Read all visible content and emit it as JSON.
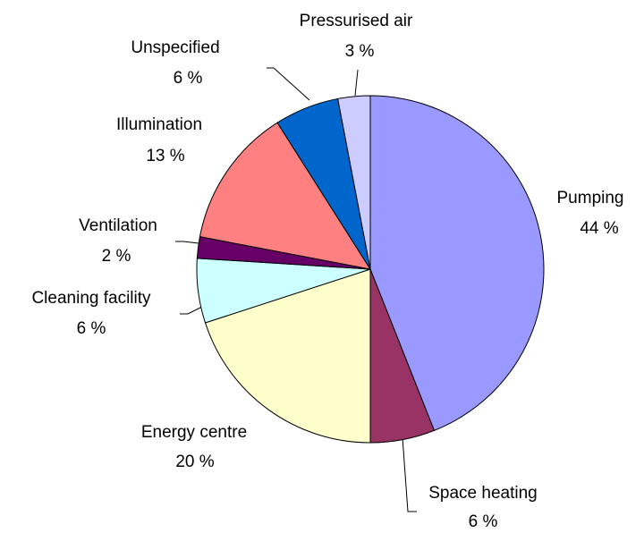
{
  "chart_data": {
    "type": "pie",
    "categories": [
      "Pumping",
      "Space heating",
      "Energy centre",
      "Cleaning facility",
      "Ventilation",
      "Illumination",
      "Unspecified",
      "Pressurised air"
    ],
    "values": [
      44,
      6,
      20,
      6,
      2,
      13,
      6,
      3
    ],
    "value_labels": [
      "44 %",
      "6 %",
      "20 %",
      "6 %",
      "2 %",
      "13 %",
      "6 %",
      "3 %"
    ],
    "colors": [
      "#9999ff",
      "#993366",
      "#ffffcc",
      "#ccffff",
      "#660066",
      "#ff8080",
      "#0066cc",
      "#ccccff"
    ]
  }
}
